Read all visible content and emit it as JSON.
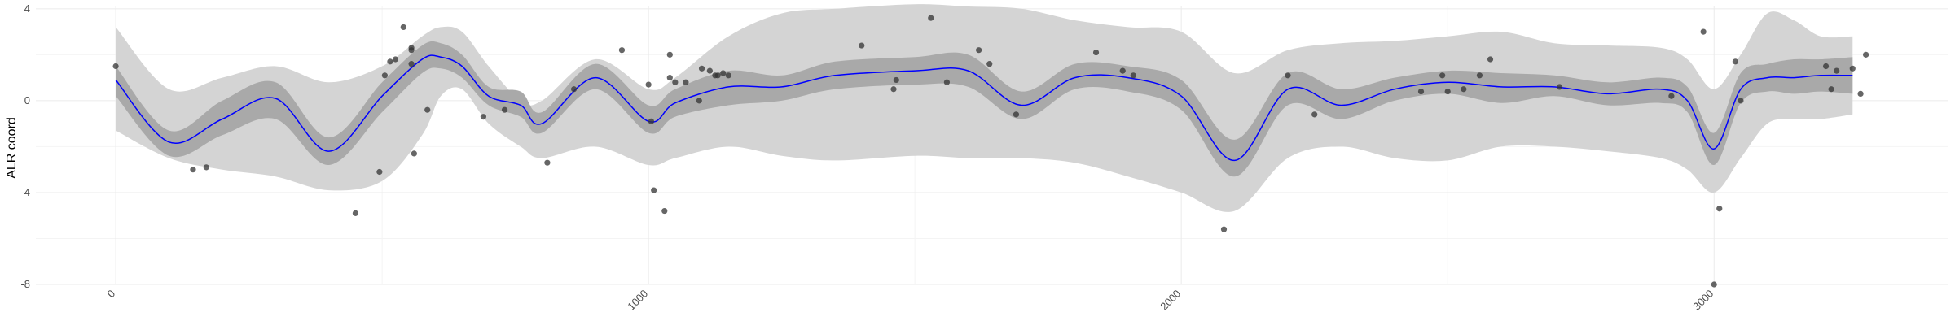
{
  "chart_data": {
    "type": "line",
    "title": "",
    "xlabel": "",
    "ylabel": "ALR coord",
    "xlim": [
      -150,
      3440
    ],
    "ylim": [
      -8.0,
      4.1
    ],
    "x_ticks": [
      0,
      1000,
      2000,
      3000
    ],
    "x_tick_labels": [
      "0",
      "1000",
      "2000",
      "3000"
    ],
    "y_ticks": [
      4,
      0,
      -4,
      -8
    ],
    "y_tick_labels": [
      "4",
      "0",
      "-4",
      "-8"
    ],
    "grid": true,
    "legend": "none",
    "colors": {
      "mean_line": "#0000ff",
      "inner_band": "#a9a9a9",
      "outer_band": "#d4d4d4",
      "points": "#333333",
      "grid_major": "#ebebeb",
      "grid_minor": "#f4f4f4"
    },
    "series": [
      {
        "type": "band",
        "x": [
          0,
          100,
          200,
          300,
          400,
          500,
          575,
          610,
          650,
          700,
          760,
          800,
          900,
          1000,
          1050,
          1150,
          1250,
          1350,
          1500,
          1600,
          1700,
          1800,
          1900,
          2000,
          2100,
          2200,
          2300,
          2400,
          2500,
          2600,
          2700,
          2800,
          2900,
          2950,
          3000,
          3050,
          3100,
          3150,
          3200,
          3260
        ],
        "lower": [
          -1.3,
          -2.5,
          -3.0,
          -3.3,
          -3.9,
          -3.5,
          -1.5,
          0.2,
          0.5,
          -1.0,
          -2.0,
          -2.5,
          -2.0,
          -2.8,
          -2.5,
          -2.0,
          -2.4,
          -2.6,
          -2.4,
          -2.5,
          -2.5,
          -2.7,
          -3.3,
          -4.0,
          -4.8,
          -2.5,
          -2.0,
          -2.5,
          -2.6,
          -2.0,
          -2.0,
          -2.2,
          -2.5,
          -3.0,
          -4.0,
          -2.5,
          -1.0,
          -0.8,
          -0.8,
          -0.6
        ],
        "upper": [
          3.2,
          0.5,
          1.0,
          1.5,
          0.8,
          1.5,
          2.8,
          3.2,
          3.0,
          1.5,
          0.0,
          0.0,
          1.8,
          0.5,
          1.0,
          2.8,
          3.8,
          4.0,
          4.2,
          4.1,
          4.0,
          3.5,
          3.2,
          3.0,
          1.2,
          2.2,
          2.5,
          2.6,
          2.8,
          3.0,
          2.5,
          2.4,
          2.3,
          1.8,
          0.5,
          2.0,
          3.8,
          3.5,
          2.8,
          2.8
        ]
      },
      {
        "type": "band",
        "x": [
          0,
          100,
          200,
          300,
          400,
          500,
          575,
          610,
          650,
          700,
          760,
          800,
          900,
          1000,
          1050,
          1150,
          1250,
          1350,
          1500,
          1600,
          1700,
          1800,
          1900,
          2000,
          2100,
          2200,
          2300,
          2400,
          2500,
          2600,
          2700,
          2800,
          2900,
          2950,
          3000,
          3050,
          3100,
          3150,
          3200,
          3260
        ],
        "lower": [
          0.2,
          -2.4,
          -1.5,
          -0.8,
          -2.8,
          -0.5,
          1.2,
          1.4,
          1.0,
          -0.2,
          -0.7,
          -1.4,
          0.5,
          -1.4,
          -0.7,
          -0.2,
          0.0,
          0.5,
          0.7,
          0.6,
          -0.8,
          0.5,
          0.4,
          -0.4,
          -3.3,
          -0.2,
          -0.8,
          0.0,
          0.3,
          -0.1,
          0.2,
          -0.2,
          -0.1,
          -0.5,
          -2.8,
          -0.1,
          0.4,
          0.3,
          0.4,
          0.3
        ],
        "upper": [
          1.5,
          -1.3,
          0.0,
          0.8,
          -1.6,
          0.8,
          2.4,
          2.5,
          2.0,
          0.6,
          0.4,
          -0.5,
          1.6,
          -0.2,
          0.5,
          1.3,
          1.1,
          1.7,
          1.9,
          2.0,
          0.4,
          1.6,
          1.5,
          0.9,
          -1.7,
          1.2,
          0.5,
          1.0,
          1.3,
          1.2,
          1.1,
          0.8,
          1.0,
          0.6,
          -1.4,
          1.2,
          1.6,
          1.8,
          1.8,
          1.9
        ]
      },
      {
        "type": "line",
        "x": [
          0,
          100,
          200,
          300,
          400,
          500,
          575,
          610,
          650,
          700,
          760,
          800,
          900,
          1000,
          1050,
          1150,
          1250,
          1350,
          1500,
          1600,
          1700,
          1800,
          1900,
          2000,
          2100,
          2200,
          2300,
          2400,
          2500,
          2600,
          2700,
          2800,
          2900,
          2950,
          3000,
          3050,
          3100,
          3150,
          3200,
          3260
        ],
        "y": [
          0.9,
          -1.8,
          -0.8,
          0.1,
          -2.2,
          0.2,
          1.8,
          1.9,
          1.5,
          0.2,
          -0.2,
          -1.0,
          1.0,
          -0.9,
          -0.1,
          0.6,
          0.6,
          1.1,
          1.3,
          1.3,
          -0.2,
          1.0,
          1.0,
          0.2,
          -2.6,
          0.5,
          -0.2,
          0.5,
          0.8,
          0.6,
          0.6,
          0.3,
          0.5,
          0.0,
          -2.1,
          0.5,
          1.0,
          1.0,
          1.1,
          1.1
        ]
      },
      {
        "type": "scatter",
        "x": [
          0,
          145,
          170,
          450,
          495,
          505,
          515,
          525,
          540,
          555,
          555,
          555,
          585,
          560,
          690,
          730,
          810,
          860,
          950,
          1000,
          1005,
          1010,
          1030,
          1040,
          1040,
          1050,
          1070,
          1095,
          1100,
          1115,
          1125,
          1130,
          1140,
          1150,
          1400,
          1460,
          1465,
          1530,
          1560,
          1620,
          1640,
          1690,
          1840,
          1890,
          1910,
          2080,
          2200,
          2250,
          2450,
          2490,
          2500,
          2530,
          2560,
          2580,
          2710,
          2920,
          2980,
          3000,
          3010,
          3040,
          3050,
          3210,
          3220,
          3230,
          3260,
          3275,
          3285
        ],
        "y": [
          1.5,
          -3.0,
          -2.9,
          -4.9,
          -3.1,
          1.1,
          1.7,
          1.8,
          3.2,
          2.3,
          2.2,
          1.6,
          -0.4,
          -2.3,
          -0.7,
          -0.4,
          -2.7,
          0.5,
          2.2,
          0.7,
          -0.9,
          -3.9,
          -4.8,
          2.0,
          1.0,
          0.8,
          0.8,
          0.0,
          1.4,
          1.3,
          1.1,
          1.1,
          1.2,
          1.1,
          2.4,
          0.5,
          0.9,
          3.6,
          0.8,
          2.2,
          1.6,
          -0.6,
          2.1,
          1.3,
          1.1,
          -5.6,
          1.1,
          -0.6,
          0.4,
          1.1,
          0.4,
          0.5,
          1.1,
          1.8,
          0.6,
          0.2,
          3.0,
          -8.0,
          -4.7,
          1.7,
          0.0,
          1.5,
          0.5,
          1.3,
          1.4,
          0.3,
          2.0
        ]
      }
    ]
  }
}
